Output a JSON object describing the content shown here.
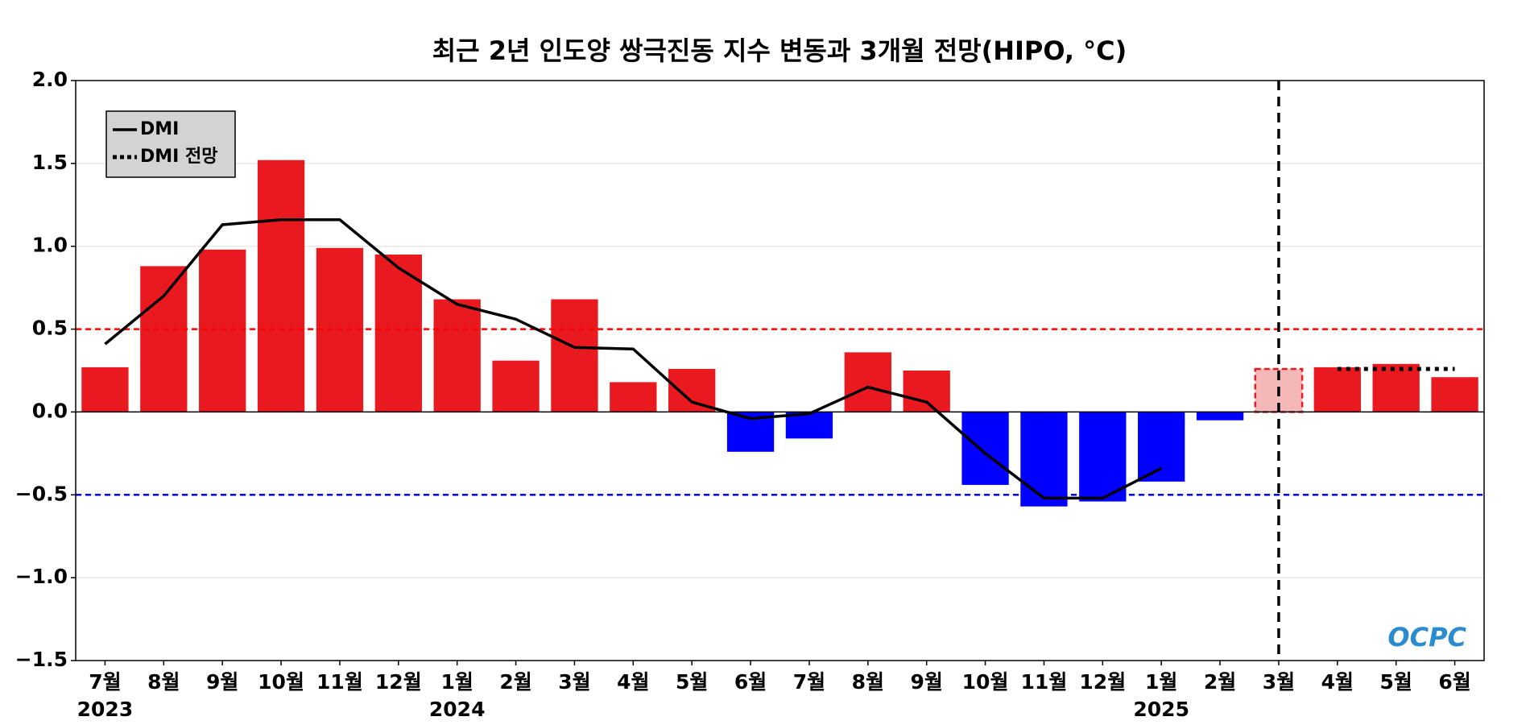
{
  "chart_data": {
    "type": "bar",
    "title": "최근 2년 인도양 쌍극진동 지수 변동과 3개월 전망(HIPO, °C)",
    "categories": [
      "7월",
      "8월",
      "9월",
      "10월",
      "11월",
      "12월",
      "1월",
      "2월",
      "3월",
      "4월",
      "5월",
      "6월",
      "7월",
      "8월",
      "9월",
      "10월",
      "11월",
      "12월",
      "1월",
      "2월",
      "3월",
      "4월",
      "5월",
      "6월"
    ],
    "x_group_labels": [
      {
        "index": 0,
        "label": "2023"
      },
      {
        "index": 6,
        "label": "2024"
      },
      {
        "index": 18,
        "label": "2025"
      }
    ],
    "values": [
      0.27,
      0.88,
      0.98,
      1.52,
      0.99,
      0.95,
      0.68,
      0.31,
      0.68,
      0.18,
      0.26,
      -0.24,
      -0.16,
      0.36,
      0.25,
      -0.44,
      -0.57,
      -0.54,
      -0.42,
      -0.05,
      0.26,
      0.27,
      0.29,
      0.21
    ],
    "colors": [
      "#e8191f",
      "#e8191f",
      "#e8191f",
      "#e8191f",
      "#e8191f",
      "#e8191f",
      "#e8191f",
      "#e8191f",
      "#e8191f",
      "#e8191f",
      "#e8191f",
      "#0000ff",
      "#0000ff",
      "#e8191f",
      "#e8191f",
      "#0000ff",
      "#0000ff",
      "#0000ff",
      "#0000ff",
      "#0000ff",
      "#f4b8b8",
      "#e8191f",
      "#e8191f",
      "#e8191f"
    ],
    "edge_colors": [
      null,
      null,
      null,
      null,
      null,
      null,
      null,
      null,
      null,
      null,
      null,
      null,
      null,
      null,
      null,
      null,
      null,
      null,
      null,
      null,
      "#e8191f",
      null,
      null,
      null
    ],
    "series": [
      {
        "name": "DMI",
        "color": "#000000",
        "style": "solid",
        "values": [
          0.41,
          0.7,
          1.13,
          1.16,
          1.16,
          0.87,
          0.65,
          0.56,
          0.39,
          0.38,
          0.06,
          -0.04,
          -0.01,
          0.15,
          0.06,
          -0.25,
          -0.52,
          -0.52,
          -0.34,
          null,
          null,
          null,
          null,
          null
        ]
      },
      {
        "name": "DMI 전망",
        "color": "#000000",
        "style": "dotted",
        "values": [
          null,
          null,
          null,
          null,
          null,
          null,
          null,
          null,
          null,
          null,
          null,
          null,
          null,
          null,
          null,
          null,
          null,
          null,
          null,
          null,
          null,
          0.26,
          0.26,
          0.26
        ]
      }
    ],
    "hlines": [
      {
        "value": 0.5,
        "color": "#ff0000"
      },
      {
        "value": -0.5,
        "color": "#0000ff"
      }
    ],
    "vline_index": 20,
    "ylim": [
      -1.5,
      2.0
    ],
    "yticks": [
      {
        "value": -1.5,
        "label": "−1.5"
      },
      {
        "value": -1.0,
        "label": "−1.0"
      },
      {
        "value": -0.5,
        "label": "−0.5"
      },
      {
        "value": 0,
        "label": "0.0"
      },
      0.5,
      {
        "value": 1.0,
        "label": "1.0"
      },
      1.5,
      {
        "value": 2.0,
        "label": "2.0"
      }
    ],
    "grid": true,
    "legend": "upper left",
    "logo": "OCPC"
  }
}
